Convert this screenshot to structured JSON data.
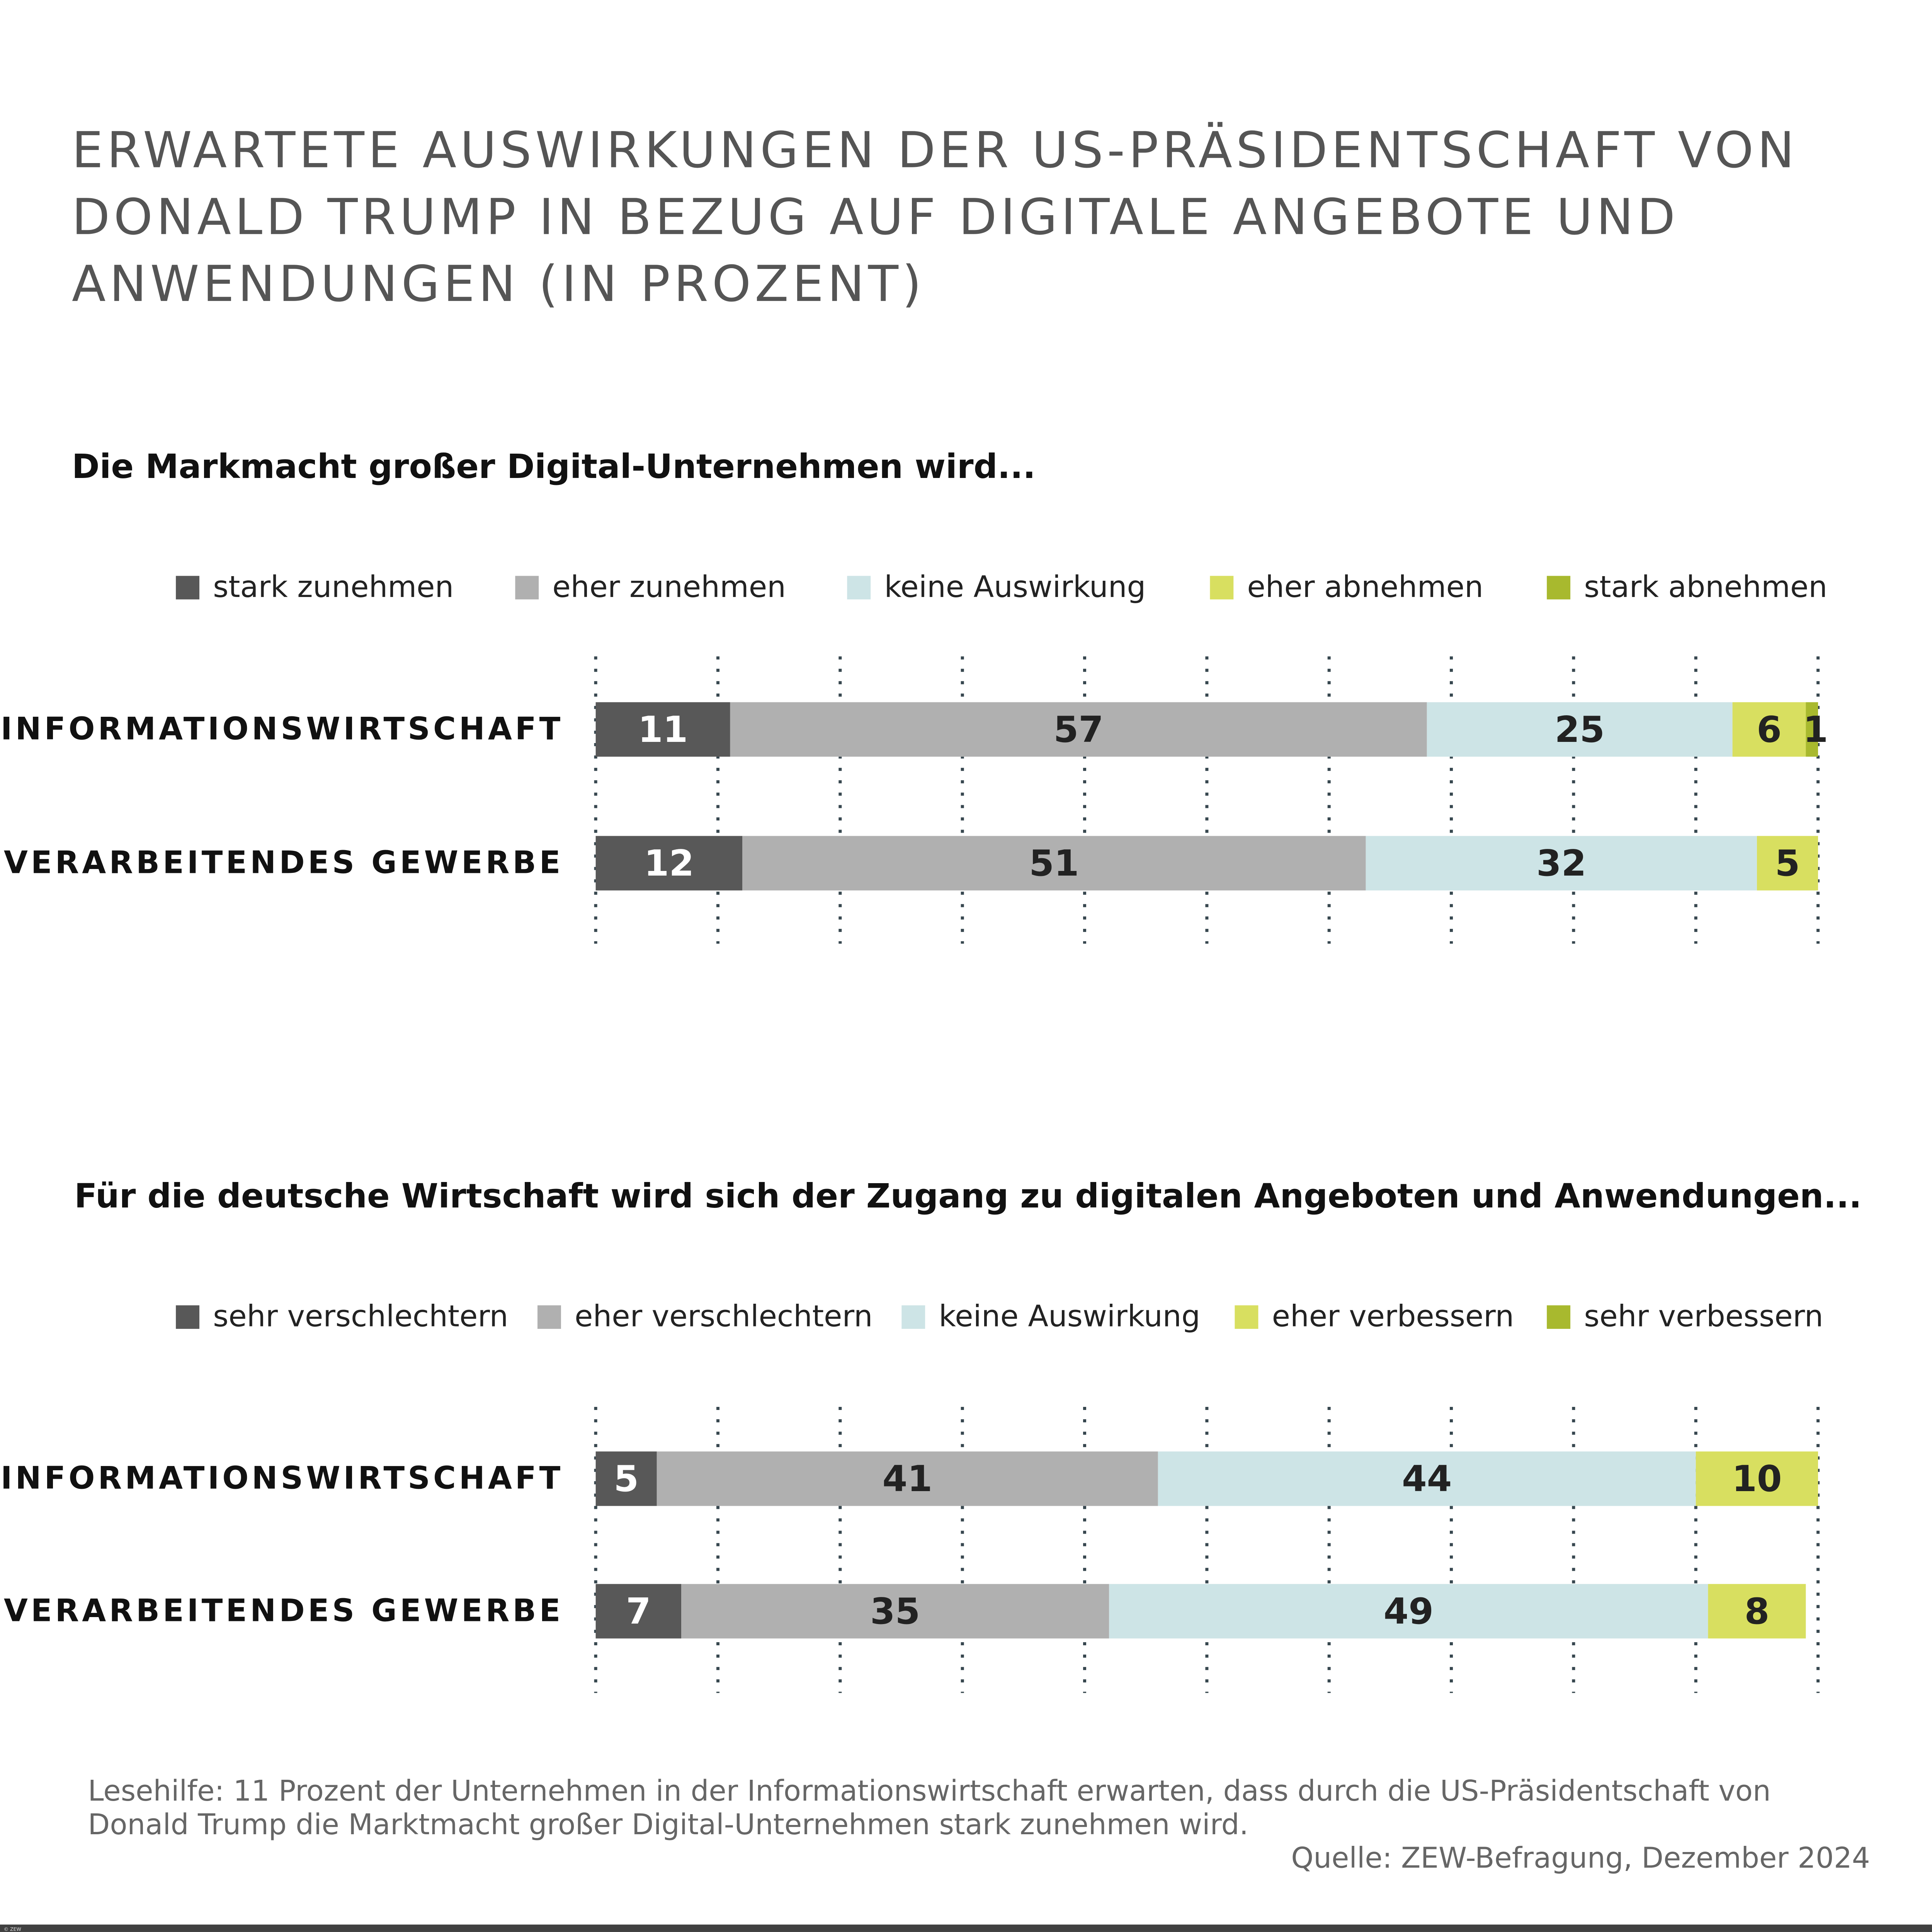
{
  "title": "Erwartete Auswirkungen der US-Präsidentschaft von Donald Trump in Bezug auf digitale Angebote und Anwendungen (in Prozent)",
  "title_lines": [
    "ERWARTETE AUSWIRKUNGEN DER US-PRÄSIDENTSCHAFT VON",
    "DONALD TRUMP IN BEZUG AUF DIGITALE ANGEBOTE UND",
    "ANWENDUNGEN (IN PROZENT)"
  ],
  "chart_data": [
    {
      "type": "bar",
      "stacked": true,
      "orientation": "horizontal",
      "title": "Die Markmacht großer Digital-Unternehmen wird...",
      "categories": [
        "INFORMATIONSWIRTSCHAFT",
        "VERARBEITENDES GEWERBE"
      ],
      "xlim": [
        0,
        100
      ],
      "grid": true,
      "legend_position": "top",
      "series": [
        {
          "name": "stark zunehmen",
          "color": "#585858",
          "values": [
            11,
            12
          ]
        },
        {
          "name": "eher zunehmen",
          "color": "#b0b0b0",
          "values": [
            57,
            51
          ]
        },
        {
          "name": "keine Auswirkung",
          "color": "#cde4e6",
          "values": [
            25,
            32
          ]
        },
        {
          "name": "eher abnehmen",
          "color": "#d8df60",
          "values": [
            6,
            5
          ]
        },
        {
          "name": "stark abnehmen",
          "color": "#a8b92e",
          "values": [
            1,
            0
          ]
        }
      ]
    },
    {
      "type": "bar",
      "stacked": true,
      "orientation": "horizontal",
      "title": "Für die deutsche Wirtschaft wird sich der Zugang zu digitalen Angeboten und Anwendungen...",
      "categories": [
        "INFORMATIONSWIRTSCHAFT",
        "VERARBEITENDES GEWERBE"
      ],
      "xlim": [
        0,
        100
      ],
      "grid": true,
      "legend_position": "top",
      "series": [
        {
          "name": "sehr verschlechtern",
          "color": "#585858",
          "values": [
            5,
            7
          ]
        },
        {
          "name": "eher verschlechtern",
          "color": "#b0b0b0",
          "values": [
            41,
            35
          ]
        },
        {
          "name": "keine Auswirkung",
          "color": "#cde4e6",
          "values": [
            44,
            49
          ]
        },
        {
          "name": "eher verbessern",
          "color": "#d8df60",
          "values": [
            10,
            8
          ]
        },
        {
          "name": "sehr verbessern",
          "color": "#a8b92e",
          "values": [
            0,
            0
          ]
        }
      ]
    }
  ],
  "note": "Lesehilfe: 11 Prozent der Unternehmen in der Informationswirtschaft erwarten, dass durch die US-Präsidentschaft von Donald Trump die Marktmacht großer Digital-Unternehmen stark zunehmen wird.",
  "source": "Quelle: ZEW-Befragung, Dezember 2024",
  "copyright": "© ZEW"
}
